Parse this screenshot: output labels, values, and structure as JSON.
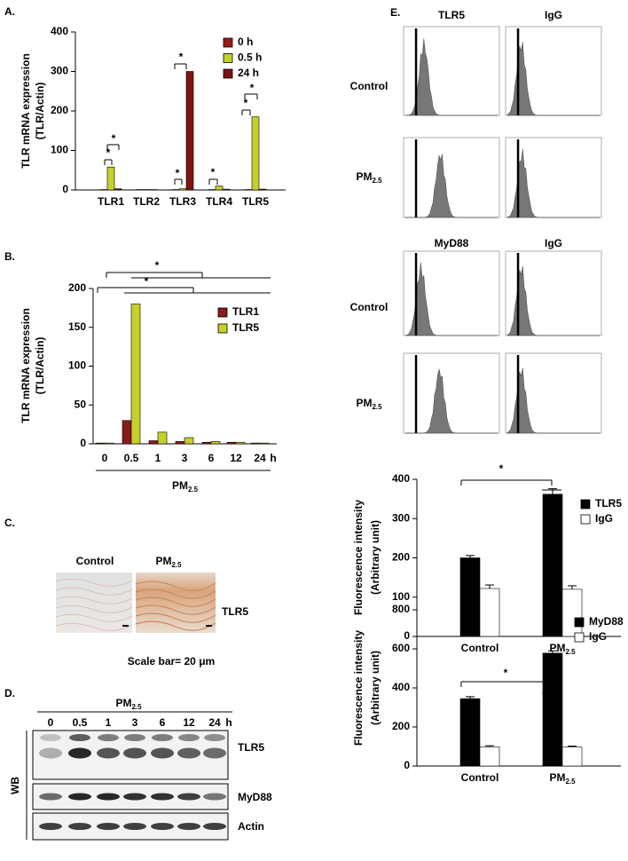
{
  "chart_data": [
    {
      "type": "bar",
      "panel_label": "A.",
      "ylabel": [
        "TLR mRNA expression",
        "(TLR/Actin)"
      ],
      "categories": [
        "TLR1",
        "TLR2",
        "TLR3",
        "TLR4",
        "TLR5"
      ],
      "series": [
        {
          "name": "0 h",
          "color": "#a01818",
          "values": [
            1,
            1,
            1,
            1,
            1
          ]
        },
        {
          "name": "0.5 h",
          "color": "#c5d02a",
          "values": [
            58,
            1,
            3,
            10,
            185
          ]
        },
        {
          "name": "24 h",
          "color": "#7e1212",
          "values": [
            3,
            1,
            300,
            2,
            2
          ]
        }
      ],
      "ylim": [
        0,
        400
      ],
      "yticks": [
        0,
        100,
        200,
        300,
        400
      ],
      "annotations": [
        "*",
        "*",
        "*",
        "*",
        "*",
        "*",
        "*"
      ]
    },
    {
      "type": "bar",
      "panel_label": "B.",
      "ylabel": [
        "TLR mRNA expression",
        "(TLR/Actin)"
      ],
      "categories": [
        "0",
        "0.5",
        "1",
        "3",
        "6",
        "12",
        "24"
      ],
      "x_unit": "h",
      "xlabel": {
        "main": "PM",
        "sub": "2.5"
      },
      "series": [
        {
          "name": "TLR1",
          "color": "#8b1a1a",
          "values": [
            1,
            30,
            4,
            3,
            2,
            2,
            1
          ]
        },
        {
          "name": "TLR5",
          "color": "#c5d02a",
          "values": [
            1,
            180,
            15,
            8,
            3,
            2,
            1
          ]
        }
      ],
      "ylim": [
        0,
        200
      ],
      "yticks": [
        0,
        50,
        100,
        150,
        200
      ],
      "annotations": [
        "*",
        "*"
      ]
    },
    {
      "type": "bar",
      "ylabel": [
        "Fluorescence intensity",
        "(Arbitrary unit)"
      ],
      "categories": [
        "Control",
        {
          "main": "PM",
          "sub": "2.5"
        }
      ],
      "series": [
        {
          "name": "TLR5",
          "color": "#000000",
          "values": [
            200,
            362
          ],
          "errors": [
            6,
            14
          ]
        },
        {
          "name": "IgG",
          "color": "#ffffff",
          "values": [
            122,
            120
          ],
          "errors": [
            9,
            9
          ]
        }
      ],
      "ylim": [
        0,
        400
      ],
      "yticks": [
        0,
        100,
        200,
        300,
        400
      ],
      "annotations": [
        "*"
      ]
    },
    {
      "type": "bar",
      "ylabel": [
        "Fluorescence intensity",
        "(Arbitrary unit)"
      ],
      "categories": [
        "Control",
        {
          "main": "PM",
          "sub": "2.5"
        }
      ],
      "series": [
        {
          "name": "MyD88",
          "color": "#000000",
          "values": [
            345,
            578
          ],
          "errors": [
            10,
            12
          ]
        },
        {
          "name": "IgG",
          "color": "#ffffff",
          "values": [
            98,
            97
          ],
          "errors": [
            6,
            5
          ]
        }
      ],
      "ylim": [
        0,
        800
      ],
      "yticks": [
        0,
        200,
        400,
        600,
        800
      ],
      "annotations": [
        "*"
      ]
    }
  ],
  "panel_c": {
    "label": "C.",
    "columns": [
      "Control",
      {
        "main": "PM",
        "sub": "2.5"
      }
    ],
    "row_label": "TLR5",
    "caption": "Scale bar= 20 μm"
  },
  "panel_d": {
    "label": "D.",
    "treatment": {
      "main": "PM",
      "sub": "2.5"
    },
    "lanes": [
      "0",
      "0.5",
      "1",
      "3",
      "6",
      "12",
      "24"
    ],
    "unit": "h",
    "side_label": "WB",
    "rows": [
      "TLR5",
      "MyD88",
      "Actin"
    ]
  },
  "panel_e": {
    "label": "E.",
    "groups": [
      {
        "columns": [
          "TLR5",
          "IgG"
        ]
      },
      {
        "columns": [
          "MyD88",
          "IgG"
        ]
      }
    ],
    "rows": [
      "Control",
      {
        "main": "PM",
        "sub": "2.5"
      }
    ]
  }
}
